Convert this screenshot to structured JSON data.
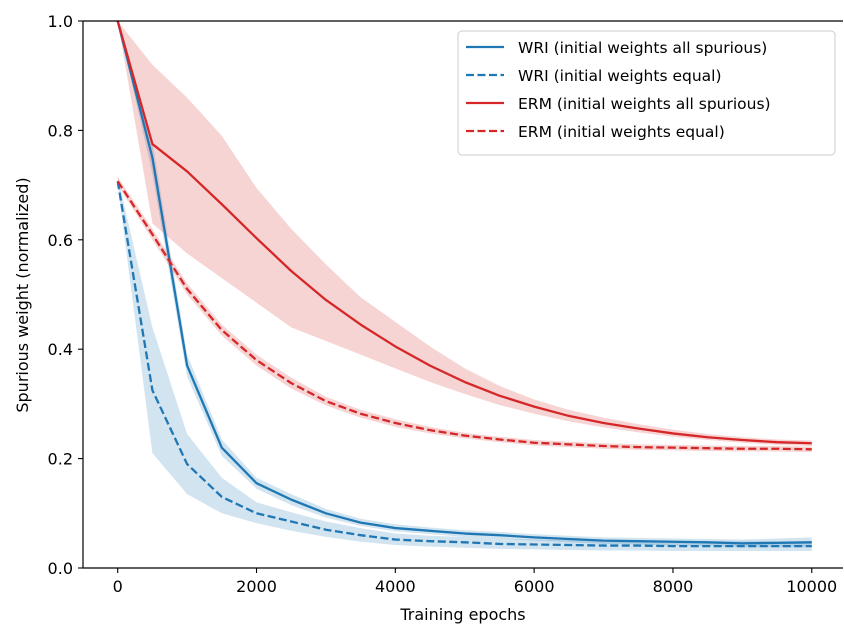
{
  "chart_data": {
    "type": "line",
    "xlabel": "Training epochs",
    "ylabel": "Spurious weight (normalized)",
    "xlim": [
      -500,
      10450
    ],
    "ylim": [
      0,
      1.0
    ],
    "xticks": [
      0,
      2000,
      4000,
      6000,
      8000,
      10000
    ],
    "xtick_labels": [
      "0",
      "2000",
      "4000",
      "6000",
      "8000",
      "10000"
    ],
    "yticks": [
      0.0,
      0.2,
      0.4,
      0.6,
      0.8,
      1.0
    ],
    "ytick_labels": [
      "0.0",
      "0.2",
      "0.4",
      "0.6",
      "0.8",
      "1.0"
    ],
    "grid": false,
    "legend_position": "top-right",
    "x": [
      0,
      500,
      1000,
      1500,
      2000,
      2500,
      3000,
      3500,
      4000,
      4500,
      5000,
      5500,
      6000,
      6500,
      7000,
      7500,
      8000,
      8500,
      9000,
      9500,
      10000
    ],
    "series": [
      {
        "name": "WRI (initial weights all spurious)",
        "color": "#1f77b4",
        "dash": "solid",
        "values": [
          1.0,
          0.75,
          0.37,
          0.22,
          0.155,
          0.125,
          0.1,
          0.083,
          0.073,
          0.068,
          0.063,
          0.06,
          0.056,
          0.053,
          0.05,
          0.049,
          0.048,
          0.047,
          0.045,
          0.046,
          0.047
        ],
        "band_lower": [
          1.0,
          0.72,
          0.35,
          0.205,
          0.145,
          0.115,
          0.092,
          0.077,
          0.067,
          0.062,
          0.057,
          0.054,
          0.05,
          0.047,
          0.044,
          0.043,
          0.041,
          0.04,
          0.038,
          0.038,
          0.038
        ],
        "band_upper": [
          1.0,
          0.78,
          0.39,
          0.235,
          0.165,
          0.135,
          0.108,
          0.09,
          0.08,
          0.074,
          0.069,
          0.066,
          0.062,
          0.059,
          0.056,
          0.055,
          0.054,
          0.053,
          0.052,
          0.054,
          0.056
        ]
      },
      {
        "name": "WRI (initial weights equal)",
        "color": "#1f77b4",
        "dash": "dashed",
        "values": [
          0.707,
          0.325,
          0.19,
          0.13,
          0.1,
          0.085,
          0.07,
          0.06,
          0.052,
          0.049,
          0.047,
          0.044,
          0.043,
          0.042,
          0.041,
          0.041,
          0.04,
          0.04,
          0.04,
          0.04,
          0.04
        ],
        "band_lower": [
          0.7,
          0.21,
          0.135,
          0.1,
          0.082,
          0.068,
          0.057,
          0.048,
          0.042,
          0.039,
          0.037,
          0.035,
          0.034,
          0.033,
          0.032,
          0.032,
          0.031,
          0.031,
          0.031,
          0.031,
          0.031
        ],
        "band_upper": [
          0.715,
          0.44,
          0.245,
          0.165,
          0.12,
          0.102,
          0.085,
          0.073,
          0.063,
          0.059,
          0.057,
          0.054,
          0.052,
          0.051,
          0.05,
          0.05,
          0.049,
          0.049,
          0.049,
          0.049,
          0.049
        ]
      },
      {
        "name": "ERM (initial weights all spurious)",
        "color": "#d62728",
        "dash": "solid",
        "values": [
          1.0,
          0.775,
          0.725,
          0.665,
          0.603,
          0.543,
          0.49,
          0.445,
          0.405,
          0.37,
          0.34,
          0.315,
          0.295,
          0.278,
          0.265,
          0.255,
          0.246,
          0.239,
          0.234,
          0.23,
          0.228
        ],
        "band_lower": [
          1.0,
          0.63,
          0.575,
          0.53,
          0.485,
          0.44,
          0.415,
          0.39,
          0.365,
          0.34,
          0.318,
          0.298,
          0.282,
          0.268,
          0.257,
          0.248,
          0.24,
          0.234,
          0.229,
          0.225,
          0.223
        ],
        "band_upper": [
          1.0,
          0.92,
          0.86,
          0.79,
          0.695,
          0.62,
          0.555,
          0.495,
          0.45,
          0.405,
          0.365,
          0.333,
          0.308,
          0.289,
          0.275,
          0.263,
          0.253,
          0.245,
          0.239,
          0.235,
          0.233
        ]
      },
      {
        "name": "ERM (initial weights equal)",
        "color": "#d62728",
        "dash": "dashed",
        "values": [
          0.707,
          0.61,
          0.51,
          0.435,
          0.38,
          0.338,
          0.305,
          0.282,
          0.265,
          0.252,
          0.242,
          0.235,
          0.229,
          0.226,
          0.223,
          0.221,
          0.22,
          0.219,
          0.218,
          0.218,
          0.217
        ],
        "band_lower": [
          0.7,
          0.6,
          0.5,
          0.425,
          0.37,
          0.328,
          0.297,
          0.275,
          0.258,
          0.246,
          0.237,
          0.23,
          0.224,
          0.221,
          0.218,
          0.216,
          0.215,
          0.214,
          0.213,
          0.213,
          0.212
        ],
        "band_upper": [
          0.715,
          0.62,
          0.52,
          0.445,
          0.39,
          0.348,
          0.313,
          0.289,
          0.272,
          0.258,
          0.247,
          0.24,
          0.234,
          0.231,
          0.228,
          0.226,
          0.225,
          0.224,
          0.223,
          0.223,
          0.222
        ]
      }
    ]
  }
}
